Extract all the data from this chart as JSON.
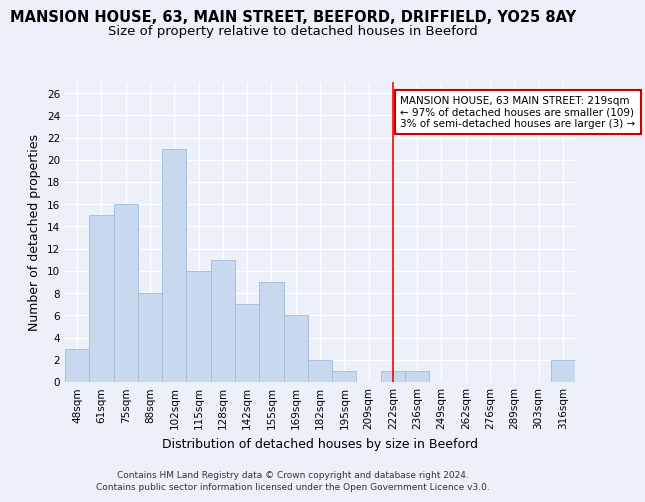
{
  "title": "MANSION HOUSE, 63, MAIN STREET, BEEFORD, DRIFFIELD, YO25 8AY",
  "subtitle": "Size of property relative to detached houses in Beeford",
  "xlabel": "Distribution of detached houses by size in Beeford",
  "ylabel": "Number of detached properties",
  "categories": [
    "48sqm",
    "61sqm",
    "75sqm",
    "88sqm",
    "102sqm",
    "115sqm",
    "128sqm",
    "142sqm",
    "155sqm",
    "169sqm",
    "182sqm",
    "195sqm",
    "209sqm",
    "222sqm",
    "236sqm",
    "249sqm",
    "262sqm",
    "276sqm",
    "289sqm",
    "303sqm",
    "316sqm"
  ],
  "values": [
    3,
    15,
    16,
    8,
    21,
    10,
    11,
    7,
    9,
    6,
    2,
    1,
    0,
    1,
    1,
    0,
    0,
    0,
    0,
    0,
    2
  ],
  "bar_color": "#c8d8ee",
  "bar_edge_color": "#a0bbda",
  "vline_x_index": 13,
  "vline_color": "#ff0000",
  "annotation_title": "MANSION HOUSE, 63 MAIN STREET: 219sqm",
  "annotation_line1": "← 97% of detached houses are smaller (109)",
  "annotation_line2": "3% of semi-detached houses are larger (3) →",
  "annotation_box_color": "#cc0000",
  "ylim": [
    0,
    27
  ],
  "yticks": [
    0,
    2,
    4,
    6,
    8,
    10,
    12,
    14,
    16,
    18,
    20,
    22,
    24,
    26
  ],
  "bg_color": "#ecf0f8",
  "grid_color": "#ffffff",
  "title_fontsize": 10.5,
  "subtitle_fontsize": 9.5,
  "axis_label_fontsize": 9,
  "tick_fontsize": 7.5,
  "footer_line1": "Contains HM Land Registry data © Crown copyright and database right 2024.",
  "footer_line2": "Contains public sector information licensed under the Open Government Licence v3.0."
}
